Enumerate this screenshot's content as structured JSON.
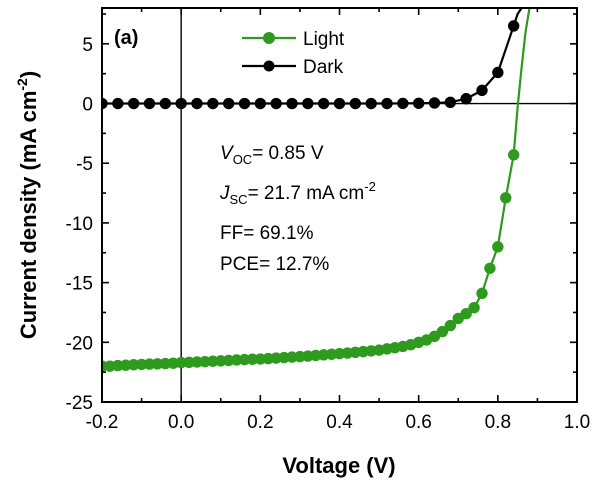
{
  "panel_label": "(a)",
  "colors": {
    "light": "#2e9a1e",
    "dark": "#000000",
    "axis": "#000000"
  },
  "annotations": {
    "voc": {
      "sym": "V",
      "sub": "OC",
      "text": "= 0.85 V"
    },
    "jsc": {
      "sym": "J",
      "sub": "SC",
      "text": "= 21.7 mA cm",
      "sup": "-2"
    },
    "ff": "FF= 69.1%",
    "pce": "PCE= 12.7%"
  },
  "chart_data": {
    "type": "line",
    "title": "",
    "xlabel": "Voltage (V)",
    "ylabel": {
      "text": "Current density (mA cm",
      "sup": "-2",
      "tail": ")"
    },
    "xlim": [
      -0.2,
      1.0
    ],
    "ylim": [
      -25,
      8
    ],
    "xticks": [
      -0.2,
      0.0,
      0.2,
      0.4,
      0.6,
      0.8,
      1.0
    ],
    "xtick_labels": [
      "-0.2",
      "0.0",
      "0.2",
      "0.4",
      "0.6",
      "0.8",
      "1.0"
    ],
    "yticks": [
      -25,
      -20,
      -15,
      -10,
      -5,
      0,
      5
    ],
    "ytick_labels": [
      "-25",
      "-20",
      "-15",
      "-10",
      "-5",
      "0",
      "5"
    ],
    "reference_lines": {
      "x": 0,
      "y": 0
    },
    "legend_position": "top",
    "series": [
      {
        "name": "Light",
        "color": "#2e9a1e",
        "x": [
          -0.2,
          -0.18,
          -0.16,
          -0.14,
          -0.12,
          -0.1,
          -0.08,
          -0.06,
          -0.04,
          -0.02,
          0.0,
          0.02,
          0.04,
          0.06,
          0.08,
          0.1,
          0.12,
          0.14,
          0.16,
          0.18,
          0.2,
          0.22,
          0.24,
          0.26,
          0.28,
          0.3,
          0.32,
          0.34,
          0.36,
          0.38,
          0.4,
          0.42,
          0.44,
          0.46,
          0.48,
          0.5,
          0.52,
          0.54,
          0.56,
          0.58,
          0.6,
          0.62,
          0.64,
          0.66,
          0.68,
          0.7,
          0.72,
          0.74,
          0.76,
          0.78,
          0.8,
          0.82,
          0.84
        ],
        "y": [
          -22.0,
          -22.0,
          -21.95,
          -21.92,
          -21.88,
          -21.85,
          -21.82,
          -21.8,
          -21.78,
          -21.75,
          -21.7,
          -21.68,
          -21.65,
          -21.62,
          -21.58,
          -21.55,
          -21.52,
          -21.48,
          -21.45,
          -21.42,
          -21.4,
          -21.36,
          -21.32,
          -21.28,
          -21.24,
          -21.2,
          -21.15,
          -21.1,
          -21.05,
          -21.0,
          -20.95,
          -20.9,
          -20.84,
          -20.78,
          -20.72,
          -20.65,
          -20.55,
          -20.45,
          -20.35,
          -20.2,
          -20.0,
          -19.8,
          -19.5,
          -19.1,
          -18.6,
          -18.0,
          -17.6,
          -17.1,
          -15.9,
          -13.8,
          -12.0,
          -7.9,
          -4.3
        ],
        "line_extension": {
          "x": [
            0.84,
            0.85,
            0.86,
            0.87,
            0.88
          ],
          "y": [
            -4.3,
            -0.3,
            3.0,
            6.0,
            8.0
          ]
        }
      },
      {
        "name": "Dark",
        "color": "#000000",
        "x": [
          -0.2,
          -0.16,
          -0.12,
          -0.08,
          -0.04,
          0.0,
          0.04,
          0.08,
          0.12,
          0.16,
          0.2,
          0.24,
          0.28,
          0.32,
          0.36,
          0.4,
          0.44,
          0.48,
          0.52,
          0.56,
          0.6,
          0.64,
          0.68,
          0.72,
          0.76,
          0.8,
          0.84
        ],
        "y": [
          0,
          0,
          0,
          0,
          0,
          0,
          0,
          0,
          0,
          0,
          0,
          0,
          0,
          0,
          0,
          0,
          0,
          0,
          0,
          0.01,
          0.02,
          0.05,
          0.1,
          0.4,
          1.1,
          2.6,
          6.5
        ],
        "line_extension": {
          "x": [
            0.84,
            0.85,
            0.86
          ],
          "y": [
            6.5,
            7.5,
            8.0
          ]
        }
      }
    ]
  }
}
